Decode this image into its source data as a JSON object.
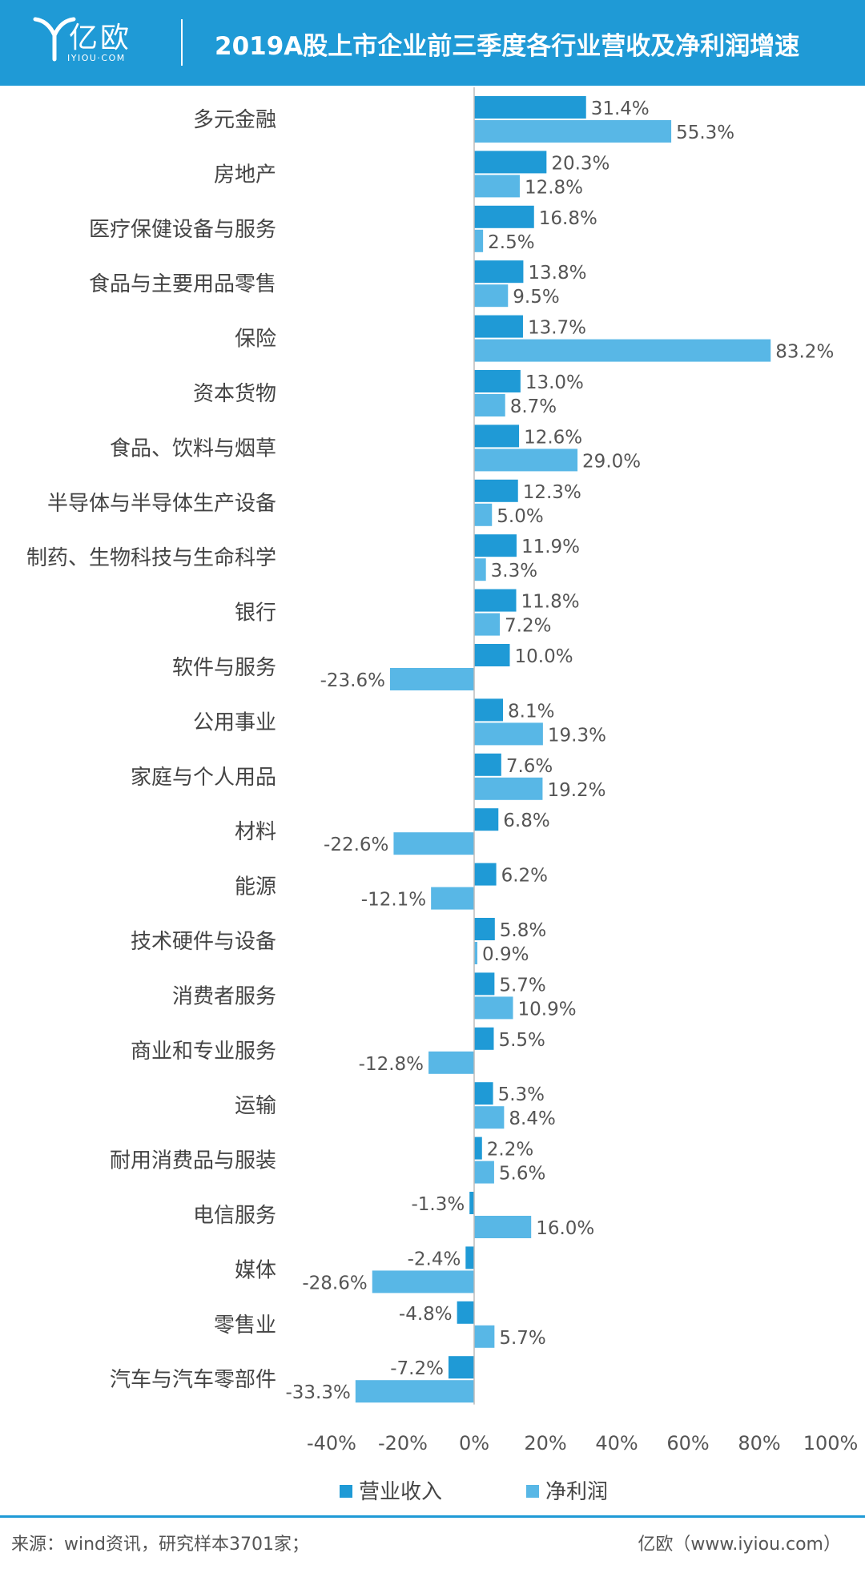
{
  "header": {
    "logo_text": "亿欧",
    "logo_sub": "IYIOU·COM",
    "title": "2019A股上市企业前三季度各行业营收及净利润增速"
  },
  "colors": {
    "header_bg": "#1f9ad6",
    "revenue": "#1f9ad6",
    "profit": "#58b7e6"
  },
  "chart_data": {
    "type": "bar",
    "orientation": "horizontal",
    "categories": [
      "多元金融",
      "房地产",
      "医疗保健设备与服务",
      "食品与主要用品零售",
      "保险",
      "资本货物",
      "食品、饮料与烟草",
      "半导体与半导体生产设备",
      "制药、生物科技与生命科学",
      "银行",
      "软件与服务",
      "公用事业",
      "家庭与个人用品",
      "材料",
      "能源",
      "技术硬件与设备",
      "消费者服务",
      "商业和专业服务",
      "运输",
      "耐用消费品与服装",
      "电信服务",
      "媒体",
      "零售业",
      "汽车与汽车零部件"
    ],
    "series": [
      {
        "name": "营业收入",
        "color": "#1f9ad6",
        "values": [
          31.4,
          20.3,
          16.8,
          13.8,
          13.7,
          13.0,
          12.6,
          12.3,
          11.9,
          11.8,
          10.0,
          8.1,
          7.6,
          6.8,
          6.2,
          5.8,
          5.7,
          5.5,
          5.3,
          2.2,
          -1.3,
          -2.4,
          -4.8,
          -7.2
        ]
      },
      {
        "name": "净利润",
        "color": "#58b7e6",
        "values": [
          55.3,
          12.8,
          2.5,
          9.5,
          83.2,
          8.7,
          29.0,
          5.0,
          3.3,
          7.2,
          -23.6,
          19.3,
          19.2,
          -22.6,
          -12.1,
          0.9,
          10.9,
          -12.8,
          8.4,
          5.6,
          16.0,
          -28.6,
          5.7,
          -33.3
        ]
      }
    ],
    "xlim": [
      -40,
      100
    ],
    "xticks": [
      -40,
      -20,
      0,
      20,
      40,
      60,
      80,
      100
    ],
    "tick_labels": [
      "-40%",
      "-20%",
      "0%",
      "20%",
      "40%",
      "60%",
      "80%",
      "100%"
    ],
    "value_labels": [
      [
        "31.4%",
        "20.3%",
        "16.8%",
        "13.8%",
        "13.7%",
        "13.0%",
        "12.6%",
        "12.3%",
        "11.9%",
        "11.8%",
        "10.0%",
        "8.1%",
        "7.6%",
        "6.8%",
        "6.2%",
        "5.8%",
        "5.7%",
        "5.5%",
        "5.3%",
        "2.2%",
        "-1.3%",
        "-2.4%",
        "-4.8%",
        "-7.2%"
      ],
      [
        "55.3%",
        "12.8%",
        "2.5%",
        "9.5%",
        "83.2%",
        "8.7%",
        "29.0%",
        "5.0%",
        "3.3%",
        "7.2%",
        "-23.6%",
        "19.3%",
        "19.2%",
        "-22.6%",
        "-12.1%",
        "0.9%",
        "10.9%",
        "-12.8%",
        "8.4%",
        "5.6%",
        "16.0%",
        "-28.6%",
        "5.7%",
        "-33.3%"
      ]
    ],
    "legend_position": "bottom",
    "grid": false
  },
  "footer": {
    "source": "来源：wind资讯，研究样本3701家；",
    "brand": "亿欧（www.iyiou.com）"
  }
}
